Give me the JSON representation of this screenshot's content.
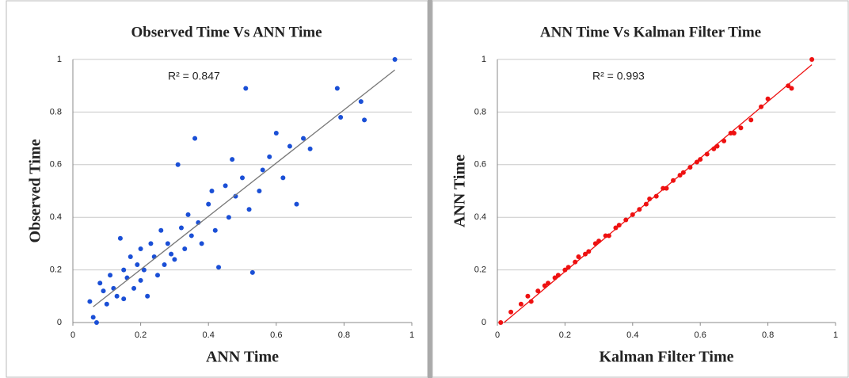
{
  "chart_data": [
    {
      "type": "scatter",
      "title": "Observed Time Vs ANN  Time",
      "xlabel": "ANN Time",
      "ylabel": "Observed Time",
      "annotation": "R² = 0.847",
      "color": "#1a4fd6",
      "trendline_color": "#777777",
      "grid": true,
      "xlim": [
        0,
        1
      ],
      "ylim": [
        0,
        1
      ],
      "xticks": [
        0,
        0.2,
        0.4,
        0.6,
        0.8,
        1
      ],
      "yticks": [
        0,
        0.2,
        0.4,
        0.6,
        0.8,
        1
      ],
      "x": [
        0.05,
        0.06,
        0.07,
        0.08,
        0.09,
        0.1,
        0.11,
        0.12,
        0.13,
        0.14,
        0.15,
        0.15,
        0.16,
        0.17,
        0.18,
        0.19,
        0.2,
        0.2,
        0.21,
        0.22,
        0.23,
        0.24,
        0.25,
        0.26,
        0.27,
        0.28,
        0.29,
        0.3,
        0.31,
        0.32,
        0.33,
        0.34,
        0.35,
        0.36,
        0.37,
        0.38,
        0.4,
        0.41,
        0.42,
        0.43,
        0.45,
        0.46,
        0.47,
        0.48,
        0.5,
        0.51,
        0.52,
        0.53,
        0.55,
        0.56,
        0.58,
        0.6,
        0.62,
        0.64,
        0.66,
        0.68,
        0.7,
        0.78,
        0.79,
        0.85,
        0.86,
        0.95
      ],
      "y": [
        0.08,
        0.02,
        0.0,
        0.15,
        0.12,
        0.07,
        0.18,
        0.13,
        0.1,
        0.32,
        0.2,
        0.09,
        0.17,
        0.25,
        0.13,
        0.22,
        0.16,
        0.28,
        0.2,
        0.1,
        0.3,
        0.25,
        0.18,
        0.35,
        0.22,
        0.3,
        0.26,
        0.24,
        0.6,
        0.36,
        0.28,
        0.41,
        0.33,
        0.7,
        0.38,
        0.3,
        0.45,
        0.5,
        0.35,
        0.21,
        0.52,
        0.4,
        0.62,
        0.48,
        0.55,
        0.89,
        0.43,
        0.19,
        0.5,
        0.58,
        0.63,
        0.72,
        0.55,
        0.67,
        0.45,
        0.7,
        0.66,
        0.89,
        0.78,
        0.84,
        0.77,
        1.0
      ],
      "trendline": {
        "x": [
          0.06,
          0.95
        ],
        "y": [
          0.06,
          0.96
        ]
      }
    },
    {
      "type": "scatter",
      "title": "ANN Time Vs Kalman Filter Time",
      "xlabel": "Kalman Filter Time",
      "ylabel": "ANN Time",
      "annotation": "R² = 0.993",
      "color": "#ee1111",
      "trendline_color": "#ee1111",
      "grid": true,
      "xlim": [
        0,
        1
      ],
      "ylim": [
        0,
        1
      ],
      "xticks": [
        0,
        0.2,
        0.4,
        0.6,
        0.8,
        1
      ],
      "yticks": [
        0,
        0.2,
        0.4,
        0.6,
        0.8,
        1
      ],
      "x": [
        0.01,
        0.04,
        0.07,
        0.09,
        0.1,
        0.12,
        0.14,
        0.15,
        0.17,
        0.18,
        0.2,
        0.21,
        0.23,
        0.24,
        0.26,
        0.27,
        0.29,
        0.3,
        0.32,
        0.33,
        0.35,
        0.36,
        0.38,
        0.4,
        0.42,
        0.44,
        0.45,
        0.47,
        0.49,
        0.5,
        0.52,
        0.54,
        0.55,
        0.57,
        0.59,
        0.6,
        0.62,
        0.64,
        0.65,
        0.67,
        0.69,
        0.7,
        0.72,
        0.75,
        0.78,
        0.8,
        0.86,
        0.87,
        0.93
      ],
      "y": [
        0.0,
        0.04,
        0.07,
        0.1,
        0.08,
        0.12,
        0.14,
        0.15,
        0.17,
        0.18,
        0.2,
        0.21,
        0.23,
        0.25,
        0.26,
        0.27,
        0.3,
        0.31,
        0.33,
        0.33,
        0.36,
        0.37,
        0.39,
        0.41,
        0.43,
        0.45,
        0.47,
        0.48,
        0.51,
        0.51,
        0.54,
        0.56,
        0.57,
        0.59,
        0.61,
        0.62,
        0.64,
        0.66,
        0.67,
        0.69,
        0.72,
        0.72,
        0.74,
        0.77,
        0.82,
        0.85,
        0.9,
        0.89,
        1.0
      ],
      "trendline": {
        "x": [
          0.02,
          0.93
        ],
        "y": [
          0.0,
          0.98
        ]
      }
    }
  ]
}
